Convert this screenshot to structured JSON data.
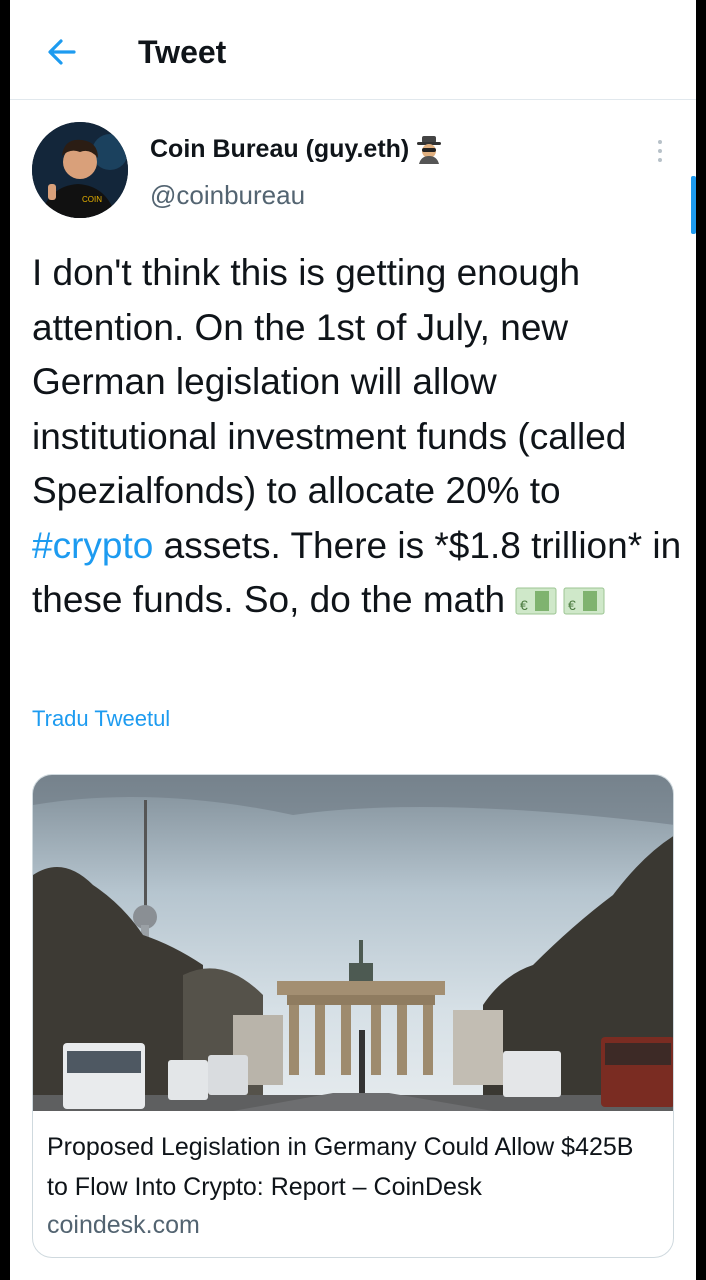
{
  "header": {
    "title": "Tweet"
  },
  "author": {
    "name": "Coin Bureau (guy.eth)",
    "handle": "@coinbureau",
    "name_emoji": "spy-emoji"
  },
  "tweet": {
    "text_before": "I don't think this is getting enough attention. On the 1st of July, new German legislation will allow institutional investment funds (called Spezialfonds) to allocate 20% to ",
    "hashtag": "#crypto",
    "text_after": " assets. There is *$1.8 trillion* in these funds. So, do the math ",
    "emojis": [
      "euro-banknote-emoji",
      "euro-banknote-emoji"
    ]
  },
  "translate_label": "Tradu Tweetul",
  "card": {
    "image": "brandenburg-gate-photo",
    "title": "Proposed Legislation in Germany Could Allow $425B to Flow Into Crypto: Report – CoinDesk",
    "domain": "coindesk.com"
  },
  "colors": {
    "accent": "#1d9bf0",
    "text": "#0f1419",
    "secondary": "#536471"
  }
}
